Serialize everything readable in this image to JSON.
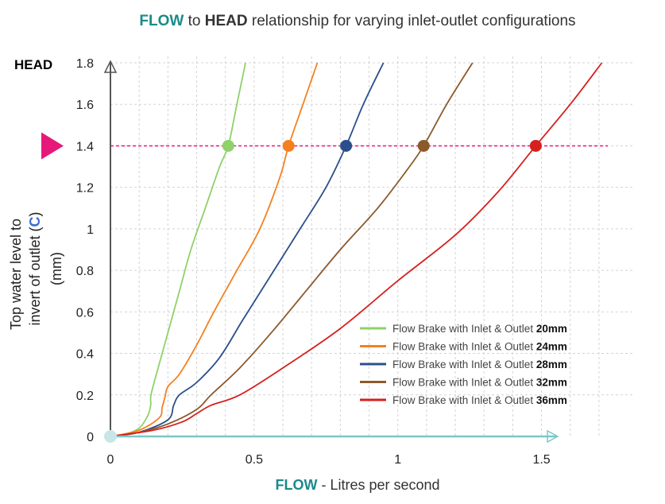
{
  "chart_data": {
    "type": "line",
    "title": {
      "part1": "FLOW",
      "part2": " to ",
      "part3": "HEAD",
      "part4": " relationship for varying inlet-outlet configurations"
    },
    "ylabel_top": "HEAD",
    "ylabel": {
      "line1": "Top water level to",
      "line2_pre": "invert of outlet (",
      "line2_c": "C",
      "line2_post": ")",
      "line3": "(mm)"
    },
    "xlabel": {
      "part1": "FLOW",
      "part2": " -  Litres per second"
    },
    "xlim": [
      0,
      1.75
    ],
    "ylim": [
      0,
      1.8
    ],
    "xticks": [
      "0",
      "0.5",
      "1",
      "1.5"
    ],
    "xtick_values": [
      0,
      0.5,
      1,
      1.5
    ],
    "yticks": [
      "0",
      "0.2",
      "0.4",
      "0.6",
      "0.8",
      "1",
      "1.2",
      "1.4",
      "1.6",
      "1.8"
    ],
    "ytick_values": [
      0,
      0.2,
      0.4,
      0.6,
      0.8,
      1.0,
      1.2,
      1.4,
      1.6,
      1.8
    ],
    "grid": true,
    "reference_head": 1.4,
    "legend_position": "bottom-right",
    "title_accent_color": "#1a8a8a",
    "marker_color": "#e6197a",
    "series": [
      {
        "name_pre": "Flow Brake with Inlet & Outlet ",
        "name_size": "20mm",
        "color": "#8fd16a",
        "marker_x": 0.41,
        "x": [
          0,
          0.05,
          0.1,
          0.13,
          0.14,
          0.14,
          0.15,
          0.17,
          0.2,
          0.24,
          0.28,
          0.33,
          0.38,
          0.41,
          0.44,
          0.47
        ],
        "y": [
          0,
          0.01,
          0.04,
          0.1,
          0.15,
          0.19,
          0.25,
          0.35,
          0.5,
          0.7,
          0.9,
          1.1,
          1.3,
          1.4,
          1.6,
          1.8
        ]
      },
      {
        "name_pre": "Flow Brake with Inlet & Outlet ",
        "name_size": "24mm",
        "color": "#f58020",
        "marker_x": 0.62,
        "x": [
          0,
          0.1,
          0.17,
          0.18,
          0.19,
          0.2,
          0.24,
          0.3,
          0.36,
          0.44,
          0.52,
          0.59,
          0.62,
          0.67,
          0.72
        ],
        "y": [
          0,
          0.03,
          0.09,
          0.14,
          0.19,
          0.24,
          0.3,
          0.44,
          0.6,
          0.8,
          1.0,
          1.25,
          1.4,
          1.6,
          1.8
        ]
      },
      {
        "name_pre": "Flow Brake with Inlet & Outlet ",
        "name_size": "28mm",
        "color": "#2b4f8c",
        "marker_x": 0.82,
        "x": [
          0,
          0.1,
          0.2,
          0.22,
          0.24,
          0.3,
          0.38,
          0.46,
          0.56,
          0.66,
          0.75,
          0.82,
          0.88,
          0.95
        ],
        "y": [
          0,
          0.02,
          0.08,
          0.15,
          0.2,
          0.26,
          0.38,
          0.56,
          0.78,
          1.0,
          1.2,
          1.4,
          1.6,
          1.8
        ]
      },
      {
        "name_pre": "Flow Brake with Inlet & Outlet ",
        "name_size": "32mm",
        "color": "#8b5a2b",
        "marker_x": 1.09,
        "x": [
          0,
          0.1,
          0.2,
          0.3,
          0.35,
          0.45,
          0.56,
          0.68,
          0.8,
          0.93,
          1.03,
          1.09,
          1.17,
          1.26
        ],
        "y": [
          0,
          0.02,
          0.06,
          0.13,
          0.2,
          0.33,
          0.5,
          0.7,
          0.9,
          1.1,
          1.28,
          1.4,
          1.6,
          1.8
        ]
      },
      {
        "name_pre": "Flow Brake with Inlet & Outlet ",
        "name_size": "36mm",
        "color": "#d62020",
        "marker_x": 1.48,
        "x": [
          0,
          0.15,
          0.25,
          0.3,
          0.35,
          0.45,
          0.6,
          0.8,
          1.0,
          1.2,
          1.35,
          1.48,
          1.6,
          1.71
        ],
        "y": [
          0,
          0.03,
          0.07,
          0.11,
          0.15,
          0.2,
          0.33,
          0.52,
          0.75,
          0.97,
          1.18,
          1.4,
          1.6,
          1.8
        ]
      }
    ]
  }
}
